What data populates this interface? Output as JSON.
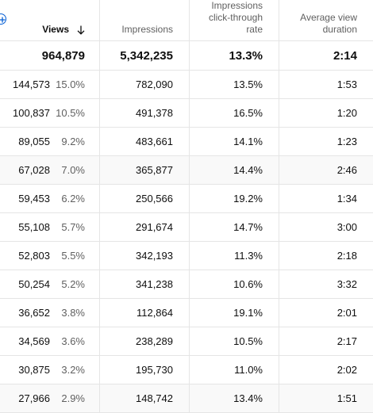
{
  "header": {
    "views_label": "Views",
    "impressions_label": "Impressions",
    "ctr_label_line1": "Impressions",
    "ctr_label_line2": "click-through",
    "ctr_label_line3": "rate",
    "avd_label_line1": "Average view",
    "avd_label_line2": "duration",
    "sort_icon": "arrow-down-icon",
    "add_icon": "add-circle-icon",
    "accent_color": "#065fd4"
  },
  "totals": {
    "views": "964,879",
    "impressions": "5,342,235",
    "ctr": "13.3%",
    "avd": "2:14"
  },
  "rows": [
    {
      "views": "144,573",
      "pct": "15.0%",
      "impressions": "782,090",
      "ctr": "13.5%",
      "avd": "1:53"
    },
    {
      "views": "100,837",
      "pct": "10.5%",
      "impressions": "491,378",
      "ctr": "16.5%",
      "avd": "1:20"
    },
    {
      "views": "89,055",
      "pct": "9.2%",
      "impressions": "483,661",
      "ctr": "14.1%",
      "avd": "1:23"
    },
    {
      "views": "67,028",
      "pct": "7.0%",
      "impressions": "365,877",
      "ctr": "14.4%",
      "avd": "2:46"
    },
    {
      "views": "59,453",
      "pct": "6.2%",
      "impressions": "250,566",
      "ctr": "19.2%",
      "avd": "1:34"
    },
    {
      "views": "55,108",
      "pct": "5.7%",
      "impressions": "291,674",
      "ctr": "14.7%",
      "avd": "3:00"
    },
    {
      "views": "52,803",
      "pct": "5.5%",
      "impressions": "342,193",
      "ctr": "11.3%",
      "avd": "2:18"
    },
    {
      "views": "50,254",
      "pct": "5.2%",
      "impressions": "341,238",
      "ctr": "10.6%",
      "avd": "3:32"
    },
    {
      "views": "36,652",
      "pct": "3.8%",
      "impressions": "112,864",
      "ctr": "19.1%",
      "avd": "2:01"
    },
    {
      "views": "34,569",
      "pct": "3.6%",
      "impressions": "238,289",
      "ctr": "10.5%",
      "avd": "2:17"
    },
    {
      "views": "30,875",
      "pct": "3.2%",
      "impressions": "195,730",
      "ctr": "11.0%",
      "avd": "2:02"
    },
    {
      "views": "27,966",
      "pct": "2.9%",
      "impressions": "148,742",
      "ctr": "13.4%",
      "avd": "1:51"
    }
  ]
}
